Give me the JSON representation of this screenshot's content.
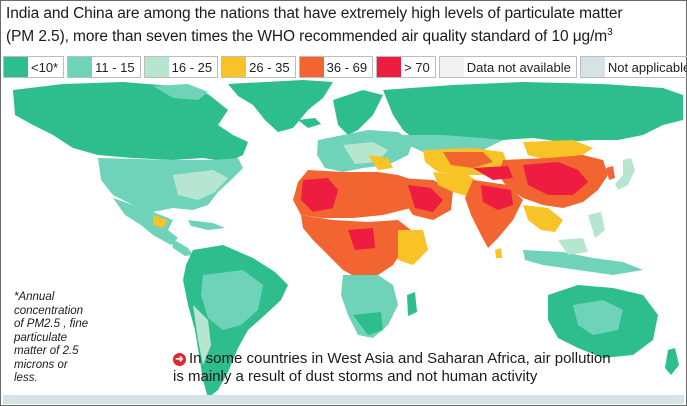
{
  "title": {
    "line1": "India and China are among the nations that have extremely high levels of  particulate matter",
    "line2": "(PM 2.5), more than seven times the WHO recommended air quality standard of 10 μg/m",
    "line2_sup": "3"
  },
  "legend": [
    {
      "label": "<10*",
      "color": "#2ebd8c"
    },
    {
      "label": "11 - 15",
      "color": "#6ed3b8"
    },
    {
      "label": "16 - 25",
      "color": "#b6e6cf"
    },
    {
      "label": "26 - 35",
      "color": "#f7c326"
    },
    {
      "label": "36 - 69",
      "color": "#f26430"
    },
    {
      "label": "> 70",
      "color": "#ed1c40"
    },
    {
      "label": "Data not available",
      "color": "#f2f2f2"
    },
    {
      "label": "Not applicable",
      "color": "#d6e3e6"
    }
  ],
  "footnote": {
    "lines": [
      "*Annual",
      "concentration",
      "of PM2.5 , fine",
      "particulate",
      "matter of 2.5",
      "microns or",
      "less."
    ]
  },
  "note": {
    "icon": "arrow-circle-icon",
    "line1": "In some countries in West Asia and Saharan Africa, air pollution",
    "line2": "is mainly a result of dust storms and not human activity"
  }
}
